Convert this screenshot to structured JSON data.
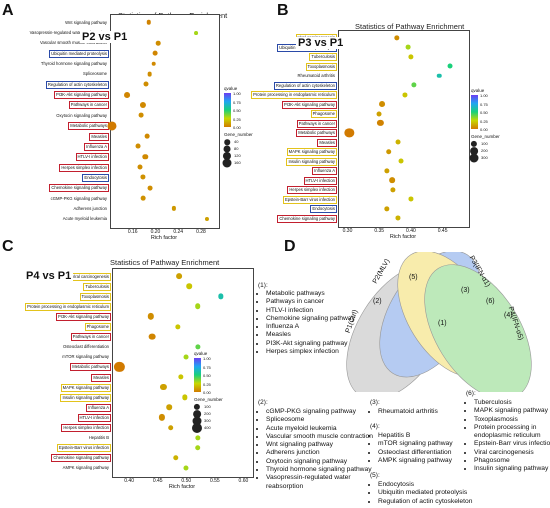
{
  "panels": {
    "a": {
      "letter": "A",
      "title": "Statistics of Pathway Enrichment",
      "comparison": "P2 vs P1"
    },
    "b": {
      "letter": "B",
      "title": "Statistics of Pathway Enrichment",
      "comparison": "P3 vs P1"
    },
    "c": {
      "letter": "C",
      "title": "Statistics of Pathway Enrichment",
      "comparison": "P4 vs P1"
    },
    "d": {
      "letter": "D"
    }
  },
  "legend": {
    "qvalue_title": "qvalue",
    "gene_title": "Gene_number"
  },
  "chart_data": [
    {
      "type": "scatter",
      "id": "A",
      "title": "Statistics of Pathway Enrichment",
      "xlabel": "Rich factor",
      "xlim": [
        0.12,
        0.31
      ],
      "xticks": [
        "0.16",
        "0.20",
        "0.24",
        "0.28"
      ],
      "xtick_values": [
        0.16,
        0.2,
        0.24,
        0.28
      ],
      "qvalue_ticks": [
        "1.00",
        "0.75",
        "0.50",
        "0.25",
        "0.00"
      ],
      "gene_ticks": [
        "40",
        "80",
        "120",
        "160"
      ],
      "gene_tick_values": [
        40,
        80,
        120,
        160
      ],
      "categories": [
        {
          "label": "Wnt signaling pathway",
          "box": "none",
          "x": 0.188,
          "q": 0.02,
          "n": 20
        },
        {
          "label": "Vasopressin-regulated water reabsorption",
          "box": "none",
          "x": 0.272,
          "q": 0.3,
          "n": 12
        },
        {
          "label": "Vascular smooth muscle contraction",
          "box": "none",
          "x": 0.205,
          "q": 0.05,
          "n": 22
        },
        {
          "label": "Ubiquitin mediated proteolysis",
          "box": "blue",
          "x": 0.2,
          "q": 0.03,
          "n": 25
        },
        {
          "label": "Thyroid hormone signaling pathway",
          "box": "none",
          "x": 0.197,
          "q": 0.04,
          "n": 22
        },
        {
          "label": "Spliceosome",
          "box": "none",
          "x": 0.19,
          "q": 0.05,
          "n": 24
        },
        {
          "label": "Regulation of actin cytoskeleton",
          "box": "blue",
          "x": 0.183,
          "q": 0.05,
          "n": 30
        },
        {
          "label": "PI3K-Akt signaling pathway",
          "box": "red",
          "x": 0.15,
          "q": 0.03,
          "n": 50
        },
        {
          "label": "Pathways in cancer",
          "box": "red",
          "x": 0.178,
          "q": 0.04,
          "n": 55
        },
        {
          "label": "Oxytocin signaling pathway",
          "box": "none",
          "x": 0.175,
          "q": 0.05,
          "n": 26
        },
        {
          "label": "Metabolic pathways",
          "box": "red",
          "x": 0.123,
          "q": 0.0,
          "n": 165
        },
        {
          "label": "Measles",
          "box": "red",
          "x": 0.185,
          "q": 0.04,
          "n": 24
        },
        {
          "label": "Influenza A",
          "box": "red",
          "x": 0.17,
          "q": 0.05,
          "n": 28
        },
        {
          "label": "HTLV-I infection",
          "box": "red",
          "x": 0.182,
          "q": 0.04,
          "n": 38
        },
        {
          "label": "Herpes simplex infection",
          "box": "red",
          "x": 0.172,
          "q": 0.05,
          "n": 30
        },
        {
          "label": "Endocytosis",
          "box": "blue",
          "x": 0.178,
          "q": 0.06,
          "n": 32
        },
        {
          "label": "Chemokine signaling pathway",
          "box": "red",
          "x": 0.19,
          "q": 0.05,
          "n": 27
        },
        {
          "label": "cGMP-PKG signaling pathway",
          "box": "none",
          "x": 0.178,
          "q": 0.06,
          "n": 24
        },
        {
          "label": "Adherens junction",
          "box": "none",
          "x": 0.232,
          "q": 0.08,
          "n": 16
        },
        {
          "label": "Acute myeloid leukemia",
          "box": "none",
          "x": 0.29,
          "q": 0.1,
          "n": 14
        }
      ]
    },
    {
      "type": "scatter",
      "id": "B",
      "title": "Statistics of Pathway Enrichment",
      "xlabel": "Rich factor",
      "xlim": [
        0.285,
        0.49
      ],
      "xticks": [
        "0.30",
        "0.35",
        "0.40",
        "0.45"
      ],
      "xtick_values": [
        0.3,
        0.35,
        0.4,
        0.45
      ],
      "qvalue_ticks": [
        "1.00",
        "0.75",
        "0.50",
        "0.25",
        "0.00"
      ],
      "gene_ticks": [
        "100",
        "200",
        "300"
      ],
      "gene_tick_values": [
        100,
        200,
        300
      ],
      "categories": [
        {
          "label": "Viral carcinogenesis",
          "box": "yellow",
          "x": 0.378,
          "q": 0.05,
          "n": 60
        },
        {
          "label": "Ubiquitin mediated proteolysis",
          "box": "blue",
          "x": 0.395,
          "q": 0.3,
          "n": 40
        },
        {
          "label": "Tuberculosis",
          "box": "yellow",
          "x": 0.4,
          "q": 0.2,
          "n": 55
        },
        {
          "label": "Toxoplasmosis",
          "box": "yellow",
          "x": 0.462,
          "q": 0.5,
          "n": 45
        },
        {
          "label": "Rheumatoid arthritis",
          "box": "none",
          "x": 0.445,
          "q": 0.6,
          "n": 30
        },
        {
          "label": "Regulation of actin cytoskeleton",
          "box": "blue",
          "x": 0.405,
          "q": 0.4,
          "n": 55
        },
        {
          "label": "Protein processing in endoplasmic reticulum",
          "box": "yellow",
          "x": 0.39,
          "q": 0.2,
          "n": 50
        },
        {
          "label": "PI3K-Akt signaling pathway",
          "box": "red",
          "x": 0.355,
          "q": 0.05,
          "n": 85
        },
        {
          "label": "Phagosome",
          "box": "yellow",
          "x": 0.35,
          "q": 0.1,
          "n": 45
        },
        {
          "label": "Pathways in cancer",
          "box": "red",
          "x": 0.352,
          "q": 0.02,
          "n": 100
        },
        {
          "label": "Metabolic pathways",
          "box": "red",
          "x": 0.303,
          "q": 0.0,
          "n": 330
        },
        {
          "label": "Measles",
          "box": "red",
          "x": 0.38,
          "q": 0.15,
          "n": 45
        },
        {
          "label": "MAPK signaling pathway",
          "box": "yellow",
          "x": 0.365,
          "q": 0.08,
          "n": 70
        },
        {
          "label": "Insulin signaling pathway",
          "box": "yellow",
          "x": 0.385,
          "q": 0.2,
          "n": 45
        },
        {
          "label": "Influenza A",
          "box": "red",
          "x": 0.362,
          "q": 0.1,
          "n": 55
        },
        {
          "label": "HTLV-I infection",
          "box": "red",
          "x": 0.37,
          "q": 0.05,
          "n": 75
        },
        {
          "label": "Herpes simplex infection",
          "box": "red",
          "x": 0.372,
          "q": 0.1,
          "n": 55
        },
        {
          "label": "Epstein-Barr virus infection",
          "box": "yellow",
          "x": 0.4,
          "q": 0.2,
          "n": 50
        },
        {
          "label": "Endocytosis",
          "box": "blue",
          "x": 0.362,
          "q": 0.1,
          "n": 60
        },
        {
          "label": "Chemokine signaling pathway",
          "box": "red",
          "x": 0.38,
          "q": 0.15,
          "n": 50
        }
      ]
    },
    {
      "type": "scatter",
      "id": "C",
      "title": "Statistics of Pathway Enrichment",
      "xlabel": "Rich factor",
      "xlim": [
        0.37,
        0.615
      ],
      "xticks": [
        "0.40",
        "0.45",
        "0.50",
        "0.55",
        "0.60"
      ],
      "xtick_values": [
        0.4,
        0.45,
        0.5,
        0.55,
        0.6
      ],
      "qvalue_ticks": [
        "1.00",
        "0.75",
        "0.50",
        "0.25",
        "0.00"
      ],
      "gene_ticks": [
        "100",
        "200",
        "300",
        "400"
      ],
      "gene_tick_values": [
        100,
        200,
        300,
        400
      ],
      "categories": [
        {
          "label": "Viral carcinogenesis",
          "box": "yellow",
          "x": 0.487,
          "q": 0.1,
          "n": 80
        },
        {
          "label": "Tuberculosis",
          "box": "yellow",
          "x": 0.505,
          "q": 0.2,
          "n": 70
        },
        {
          "label": "Toxoplasmosis",
          "box": "yellow",
          "x": 0.56,
          "q": 0.6,
          "n": 60
        },
        {
          "label": "Protein processing in endoplasmic reticulum",
          "box": "yellow",
          "x": 0.52,
          "q": 0.3,
          "n": 70
        },
        {
          "label": "PI3K-Akt signaling pathway",
          "box": "red",
          "x": 0.438,
          "q": 0.05,
          "n": 110
        },
        {
          "label": "Phagosome",
          "box": "yellow",
          "x": 0.485,
          "q": 0.2,
          "n": 60
        },
        {
          "label": "Pathways in cancer",
          "box": "red",
          "x": 0.44,
          "q": 0.03,
          "n": 130
        },
        {
          "label": "Osteoclast differentiation",
          "box": "none",
          "x": 0.52,
          "q": 0.4,
          "n": 55
        },
        {
          "label": "mTOR signaling pathway",
          "box": "none",
          "x": 0.5,
          "q": 0.3,
          "n": 45
        },
        {
          "label": "Metabolic pathways",
          "box": "red",
          "x": 0.383,
          "q": 0.0,
          "n": 420
        },
        {
          "label": "Measles",
          "box": "red",
          "x": 0.49,
          "q": 0.2,
          "n": 60
        },
        {
          "label": "MAPK signaling pathway",
          "box": "yellow",
          "x": 0.46,
          "q": 0.1,
          "n": 95
        },
        {
          "label": "Insulin signaling pathway",
          "box": "yellow",
          "x": 0.497,
          "q": 0.2,
          "n": 60
        },
        {
          "label": "Influenza A",
          "box": "red",
          "x": 0.47,
          "q": 0.1,
          "n": 70
        },
        {
          "label": "HTLV-I infection",
          "box": "red",
          "x": 0.458,
          "q": 0.05,
          "n": 100
        },
        {
          "label": "Herpes simplex infection",
          "box": "red",
          "x": 0.473,
          "q": 0.1,
          "n": 70
        },
        {
          "label": "Hepatitis B",
          "box": "none",
          "x": 0.52,
          "q": 0.3,
          "n": 60
        },
        {
          "label": "Epstein-Barr virus infection",
          "box": "yellow",
          "x": 0.52,
          "q": 0.3,
          "n": 70
        },
        {
          "label": "Chemokine signaling pathway",
          "box": "red",
          "x": 0.482,
          "q": 0.15,
          "n": 65
        },
        {
          "label": "AMPK signaling pathway",
          "box": "none",
          "x": 0.5,
          "q": 0.3,
          "n": 50
        }
      ]
    }
  ],
  "venn": {
    "sets": [
      {
        "label": "P1(Ctrl)",
        "color": "#bdbdbd"
      },
      {
        "label": "P2(MLV)",
        "color": "#7aa2e8"
      },
      {
        "label": "P3(IFN-α1)",
        "color": "#f3dd6a"
      },
      {
        "label": "P4(IFN-α5)",
        "color": "#88d883"
      }
    ],
    "regions": [
      {
        "label": "(1)"
      },
      {
        "label": "(2)"
      },
      {
        "label": "(3)"
      },
      {
        "label": "(4)"
      },
      {
        "label": "(5)"
      },
      {
        "label": "(6)"
      }
    ]
  },
  "lists": {
    "g1": {
      "head": "(1):",
      "items": [
        "Metabolic pathways",
        "Pathways in cancer",
        "HTLV-I infection",
        "Chemokine signaling pathway",
        "Influenza A",
        "Measles",
        "PI3K-Akt signaling pathway",
        "Herpes simplex infection"
      ]
    },
    "g2": {
      "head": "(2):",
      "items": [
        "cGMP-PKG signaling pathway",
        "Spliceosome",
        "Acute myeloid leukemia",
        "Vascular smooth muscle contraction",
        "Wnt signaling pathway",
        "Adherens junction",
        "Oxytocin signaling pathway",
        "Thyroid hormone signaling pathway",
        "Vasopressin-regulated water reabsorption"
      ]
    },
    "g3": {
      "head": "(3):",
      "items": [
        "Rheumatoid arthritis"
      ]
    },
    "g4": {
      "head": "(4):",
      "items": [
        "Hepatitis B",
        "mTOR signaling pathway",
        "Osteoclast differentiation",
        "AMPK signaling pathway"
      ]
    },
    "g5": {
      "head": "(5):",
      "items": [
        "Endocytosis",
        "Ubiquitin mediated proteolysis",
        "Regulation of actin cytoskeleton"
      ]
    },
    "g6": {
      "head": "(6):",
      "items": [
        "Tuberculosis",
        "MAPK signaling pathway",
        "Toxoplasmosis",
        "Protein processing in endoplasmic reticulum",
        "Epstein-Barr virus infection",
        "Viral carcinogenesis",
        "Phagosome",
        "Insulin signaling pathway"
      ]
    }
  }
}
